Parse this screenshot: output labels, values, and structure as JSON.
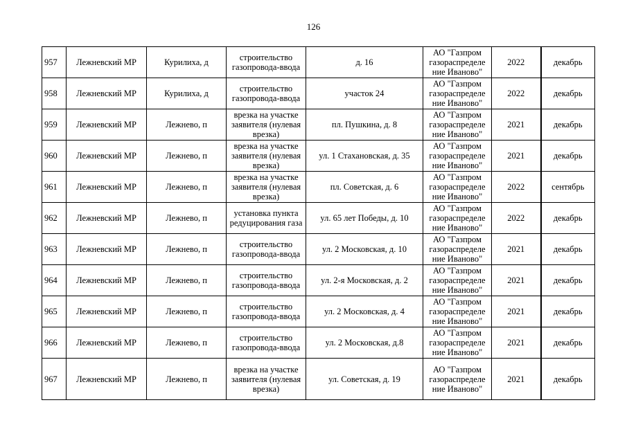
{
  "page_number": "126",
  "rows": [
    {
      "num": "957",
      "district": "Лежневский МР",
      "locality": "Курилиха, д",
      "work": "строительство газопровода-ввода",
      "address": "д. 16",
      "org": "АО \"Газпром газораспределе ние Иваново\"",
      "year": "2022",
      "month": "декабрь"
    },
    {
      "num": "958",
      "district": "Лежневский МР",
      "locality": "Курилиха, д",
      "work": "строительство газопровода-ввода",
      "address": "участок 24",
      "org": "АО \"Газпром газораспределе ние Иваново\"",
      "year": "2022",
      "month": "декабрь"
    },
    {
      "num": "959",
      "district": "Лежневский МР",
      "locality": "Лежнево, п",
      "work": "врезка на участке заявителя (нулевая врезка)",
      "address": "пл. Пушкина, д. 8",
      "org": "АО \"Газпром газораспределе ние Иваново\"",
      "year": "2021",
      "month": "декабрь"
    },
    {
      "num": "960",
      "district": "Лежневский МР",
      "locality": "Лежнево, п",
      "work": "врезка на участке заявителя (нулевая врезка)",
      "address": "ул. 1 Стахановская, д. 35",
      "org": "АО \"Газпром газораспределе ние Иваново\"",
      "year": "2021",
      "month": "декабрь"
    },
    {
      "num": "961",
      "district": "Лежневский МР",
      "locality": "Лежнево, п",
      "work": "врезка на участке заявителя (нулевая врезка)",
      "address": "пл. Советская, д. 6",
      "org": "АО \"Газпром газораспределе ние Иваново\"",
      "year": "2022",
      "month": "сентябрь"
    },
    {
      "num": "962",
      "district": "Лежневский МР",
      "locality": "Лежнево, п",
      "work": "установка пункта редуцирования газа",
      "address": "ул. 65 лет Победы, д. 10",
      "org": "АО \"Газпром газораспределе ние Иваново\"",
      "year": "2022",
      "month": "декабрь"
    },
    {
      "num": "963",
      "district": "Лежневский МР",
      "locality": "Лежнево, п",
      "work": "строительство газопровода-ввода",
      "address": "ул. 2 Московская, д. 10",
      "org": "АО \"Газпром газораспределе ние Иваново\"",
      "year": "2021",
      "month": "декабрь"
    },
    {
      "num": "964",
      "district": "Лежневский МР",
      "locality": "Лежнево, п",
      "work": "строительство газопровода-ввода",
      "address": "ул. 2-я Московская, д. 2",
      "org": "АО \"Газпром газораспределе ние Иваново\"",
      "year": "2021",
      "month": "декабрь"
    },
    {
      "num": "965",
      "district": "Лежневский МР",
      "locality": "Лежнево, п",
      "work": "строительство газопровода-ввода",
      "address": "ул. 2 Московская, д. 4",
      "org": "АО \"Газпром газораспределе ние Иваново\"",
      "year": "2021",
      "month": "декабрь"
    },
    {
      "num": "966",
      "district": "Лежневский МР",
      "locality": "Лежнево, п",
      "work": "строительство газопровода-ввода",
      "address": "ул. 2 Московская, д.8",
      "org": "АО \"Газпром газораспределе ние Иваново\"",
      "year": "2021",
      "month": "декабрь"
    },
    {
      "num": "967",
      "district": "Лежневский МР",
      "locality": "Лежнево, п",
      "work": "врезка на участке заявителя (нулевая врезка)",
      "address": "ул. Советская, д. 19",
      "org": "АО \"Газпром газораспределе ние Иваново\"",
      "year": "2021",
      "month": "декабрь"
    }
  ]
}
